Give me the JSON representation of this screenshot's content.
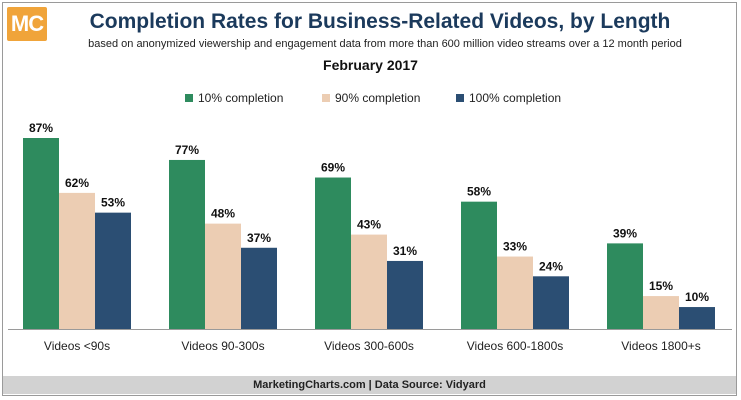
{
  "logo": {
    "text": "MC"
  },
  "header": {
    "title": "Completion Rates for Business-Related Videos, by Length",
    "subtitle": "based on anonymized viewership and engagement data from more than 600 million video streams over a 12 month period",
    "date": "February 2017"
  },
  "footer": {
    "source": "MarketingCharts.com | Data Source: Vidyard"
  },
  "colors": {
    "series1": "#2e8b5e",
    "series2": "#eccdb3",
    "series3": "#2b4e73"
  },
  "chart_data": {
    "type": "bar",
    "categories": [
      "Videos <90s",
      "Videos 90-300s",
      "Videos 300-600s",
      "Videos 600-1800s",
      "Videos 1800+s"
    ],
    "series": [
      {
        "name": "10% completion",
        "values": [
          87,
          77,
          69,
          58,
          39
        ]
      },
      {
        "name": "90% completion",
        "values": [
          62,
          48,
          43,
          33,
          15
        ]
      },
      {
        "name": "100% completion",
        "values": [
          53,
          37,
          31,
          24,
          10
        ]
      }
    ],
    "value_suffix": "%",
    "ylim": [
      0,
      87
    ],
    "grid": false,
    "legend": "top-center"
  }
}
